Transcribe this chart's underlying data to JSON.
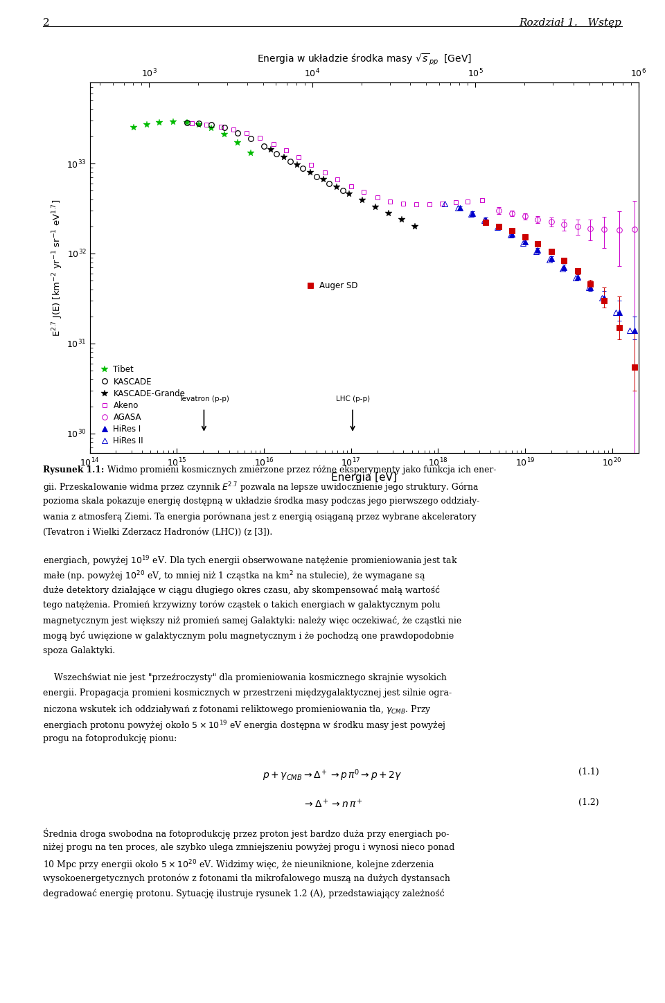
{
  "xlabel": "Energia [eV]",
  "ylabel": "E$^{2.7}$ J(E) [km$^{-2}$ yr$^{-1}$ sr$^{-1}$ eV$^{1.7}$]",
  "top_xlabel": "Energia w układzie środka masy $\\sqrt{s}_{pp}$  [GeV]",
  "xlim": [
    100000000000000.0,
    2e+20
  ],
  "ylim": [
    6e+29,
    8e+33
  ],
  "tibet_e": [
    320000000000000.0,
    450000000000000.0,
    630000000000000.0,
    900000000000000.0,
    1300000000000000.0,
    1800000000000000.0,
    2500000000000000.0,
    3500000000000000.0,
    5000000000000000.0,
    7000000000000000.0
  ],
  "tibet_f": [
    2.5e+33,
    2.7e+33,
    2.85e+33,
    2.9e+33,
    2.85e+33,
    2.7e+33,
    2.45e+33,
    2.1e+33,
    1.7e+33,
    1.3e+33
  ],
  "tibet_color": "#00bb00",
  "kascade_e": [
    1300000000000000.0,
    1800000000000000.0,
    2500000000000000.0,
    3500000000000000.0,
    5000000000000000.0,
    7000000000000000.0,
    1e+16,
    1.4e+16,
    2e+16,
    2.8e+16,
    4e+16,
    5.6e+16,
    8e+16
  ],
  "kascade_f": [
    2.85e+33,
    2.8e+33,
    2.7e+33,
    2.5e+33,
    2.2e+33,
    1.88e+33,
    1.55e+33,
    1.28e+33,
    1.05e+33,
    8.8e+32,
    7.2e+32,
    6e+32,
    5e+32
  ],
  "kascade_color": "black",
  "kaskg_e": [
    1.2e+16,
    1.7e+16,
    2.4e+16,
    3.4e+16,
    4.8e+16,
    6.8e+16,
    9.5e+16,
    1.35e+17,
    1.9e+17,
    2.7e+17,
    3.8e+17,
    5.4e+17
  ],
  "kaskg_f": [
    1.42e+33,
    1.18e+33,
    9.7e+32,
    8e+32,
    6.6e+32,
    5.5e+32,
    4.6e+32,
    3.9e+32,
    3.3e+32,
    2.8e+32,
    2.4e+32,
    2e+32
  ],
  "kaskg_color": "black",
  "akeno_e": [
    1500000000000000.0,
    2200000000000000.0,
    3200000000000000.0,
    4500000000000000.0,
    6300000000000000.0,
    9000000000000000.0,
    1.3e+16,
    1.8e+16,
    2.5e+16,
    3.5e+16,
    5e+16,
    7e+16,
    1e+17,
    1.4e+17,
    2e+17,
    2.8e+17,
    4e+17,
    5.6e+17,
    8e+17,
    1.1e+18,
    1.6e+18,
    2.2e+18,
    3.2e+18
  ],
  "akeno_f": [
    2.78e+33,
    2.72e+33,
    2.58e+33,
    2.4e+33,
    2.18e+33,
    1.92e+33,
    1.65e+33,
    1.4e+33,
    1.17e+33,
    9.7e+32,
    8e+32,
    6.6e+32,
    5.6e+32,
    4.8e+32,
    4.2e+32,
    3.8e+32,
    3.6e+32,
    3.5e+32,
    3.5e+32,
    3.6e+32,
    3.7e+32,
    3.8e+32,
    3.9e+32
  ],
  "akeno_color": "#cc00cc",
  "agasa_e": [
    5e+18,
    7e+18,
    1e+19,
    1.4e+19,
    2e+19,
    2.8e+19,
    4e+19,
    5.6e+19,
    8e+19,
    1.2e+20,
    1.8e+20
  ],
  "agasa_f": [
    3e+32,
    2.8e+32,
    2.6e+32,
    2.4e+32,
    2.25e+32,
    2.1e+32,
    2e+32,
    1.9e+32,
    1.85e+32,
    1.82e+32,
    1.85e+32
  ],
  "agasa_yerr": [
    2.5e+31,
    2.2e+31,
    2e+31,
    2.2e+31,
    2.5e+31,
    3e+31,
    3.8e+31,
    5e+31,
    7e+31,
    1.1e+32,
    2e+32
  ],
  "agasa_color": "#cc00cc",
  "hires1_e": [
    1.8e+18,
    2.5e+18,
    3.5e+18,
    5e+18,
    7e+18,
    1e+19,
    1.4e+19,
    2e+19,
    2.8e+19,
    4e+19,
    5.6e+19,
    8e+19,
    1.2e+20,
    1.8e+20
  ],
  "hires1_f": [
    3.2e+32,
    2.8e+32,
    2.4e+32,
    2e+32,
    1.65e+32,
    1.35e+32,
    1.1e+32,
    8.8e+31,
    7e+31,
    5.5e+31,
    4.2e+31,
    3.2e+31,
    2.2e+31,
    1.4e+31
  ],
  "hires1_yerr_lo": [
    1.5e+31,
    1.2e+31,
    1e+31,
    9e+30,
    8e+30,
    7e+30,
    6e+30,
    5e+30,
    5e+30,
    4e+30,
    4e+30,
    4e+30,
    4e+30,
    3e+30
  ],
  "hires1_yerr_hi": [
    1.5e+31,
    1.2e+31,
    1e+31,
    9e+30,
    8e+30,
    7e+30,
    6e+30,
    5e+30,
    5e+30,
    4e+30,
    4e+30,
    6e+30,
    8e+30,
    6e+30
  ],
  "hires1_color": "#0000cc",
  "hires2_e": [
    1.2e+18,
    1.7e+18,
    2.4e+18,
    3.4e+18,
    4.8e+18,
    6.8e+18,
    9.5e+18,
    1.35e+19,
    1.9e+19,
    2.7e+19,
    3.8e+19,
    5.4e+19,
    7.6e+19,
    1.1e+20,
    1.6e+20
  ],
  "hires2_f": [
    3.6e+32,
    3.2e+32,
    2.75e+32,
    2.35e+32,
    1.95e+32,
    1.6e+32,
    1.3e+32,
    1.05e+32,
    8.5e+31,
    6.8e+31,
    5.4e+31,
    4.2e+31,
    3.2e+31,
    2.2e+31,
    1.4e+31
  ],
  "hires2_color": "#0000cc",
  "auger_e": [
    3.5e+18,
    5e+18,
    7e+18,
    1e+19,
    1.4e+19,
    2e+19,
    2.8e+19,
    4e+19,
    5.6e+19,
    8e+19,
    1.2e+20,
    1.8e+20
  ],
  "auger_f": [
    2.2e+32,
    2e+32,
    1.78e+32,
    1.52e+32,
    1.28e+32,
    1.05e+32,
    8.4e+31,
    6.4e+31,
    4.6e+31,
    3e+31,
    1.5e+31,
    5.5e+30
  ],
  "auger_yerr_lo": [
    1.2e+31,
    1e+31,
    9e+30,
    8e+30,
    7e+30,
    6e+30,
    6e+30,
    5e+30,
    5e+30,
    5e+30,
    4e+30,
    2.5e+30
  ],
  "auger_yerr_hi": [
    1.2e+31,
    1e+31,
    9e+30,
    8e+30,
    7e+30,
    6e+30,
    6e+30,
    5e+30,
    5e+30,
    1.2e+31,
    1.8e+31,
    8e+30
  ],
  "auger_color": "#cc0000",
  "tevatron_sqrts_gev": 1960,
  "lhc_sqrts_gev": 14000,
  "tevatron_label": "Tevatron (p-p)",
  "lhc_label": "LHC (p-p)"
}
